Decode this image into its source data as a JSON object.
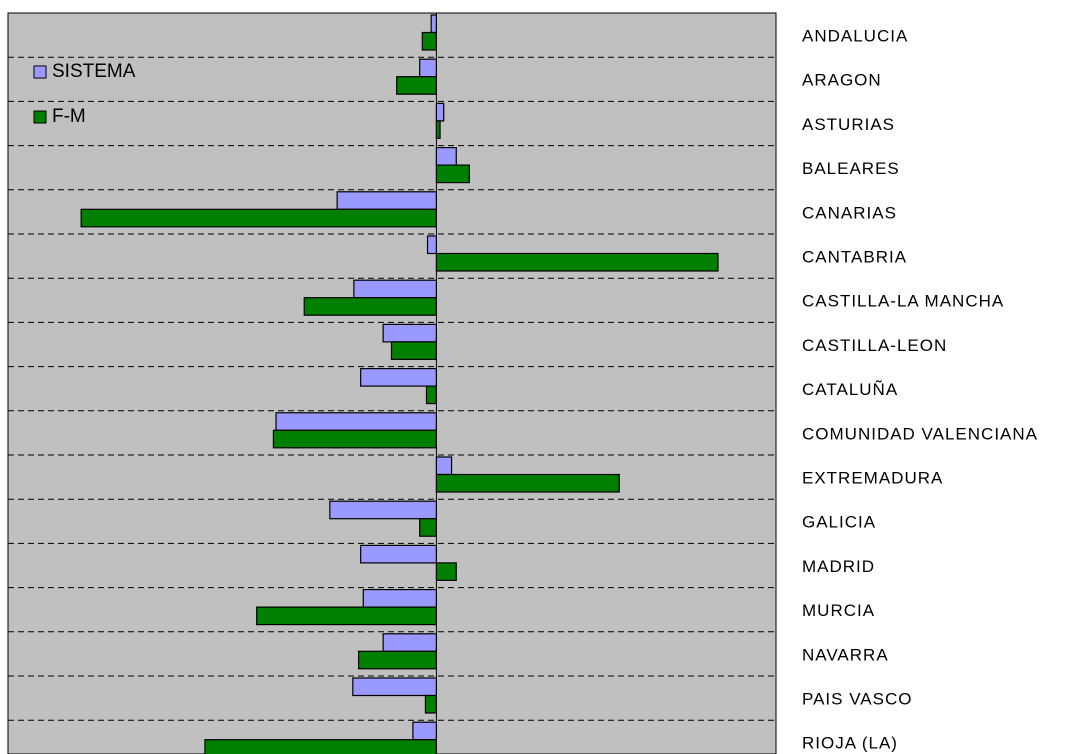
{
  "chart_data": {
    "type": "bar",
    "orientation": "horizontal",
    "categories": [
      "ANDALUCIA",
      "ARAGON",
      "ASTURIAS",
      "BALEARES",
      "CANARIAS",
      "CANTABRIA",
      "CASTILLA-LA MANCHA",
      "CASTILLA-LEON",
      "CATALUÑA",
      "COMUNIDAD VALENCIANA",
      "EXTREMADURA",
      "GALICIA",
      "MADRID",
      "MURCIA",
      "NAVARRA",
      "PAIS VASCO",
      "RIOJA (LA)"
    ],
    "series": [
      {
        "name": "SISTEMA",
        "color": "#9999ff",
        "values": [
          -1,
          -3.2,
          1.4,
          3.8,
          -19,
          -1.7,
          -15.8,
          -10.2,
          -14.5,
          -30.7,
          2.9,
          -20.4,
          -14.5,
          -14,
          -10.2,
          -16,
          -4.5
        ]
      },
      {
        "name": "F-M",
        "color": "#007f00",
        "values": [
          -2.7,
          -7.6,
          0.7,
          6.3,
          -68,
          53.9,
          -25.3,
          -8.6,
          -1.9,
          -31.2,
          35,
          -3.2,
          3.8,
          -34.4,
          -14.9,
          -2.1,
          -44.3
        ]
      }
    ],
    "xlim": [
      -82,
      65
    ],
    "title": "",
    "xlabel": "",
    "ylabel": "",
    "grid": "horizontal dashed",
    "legend_position": "top-left",
    "plot_background": "#c0c0c0"
  }
}
